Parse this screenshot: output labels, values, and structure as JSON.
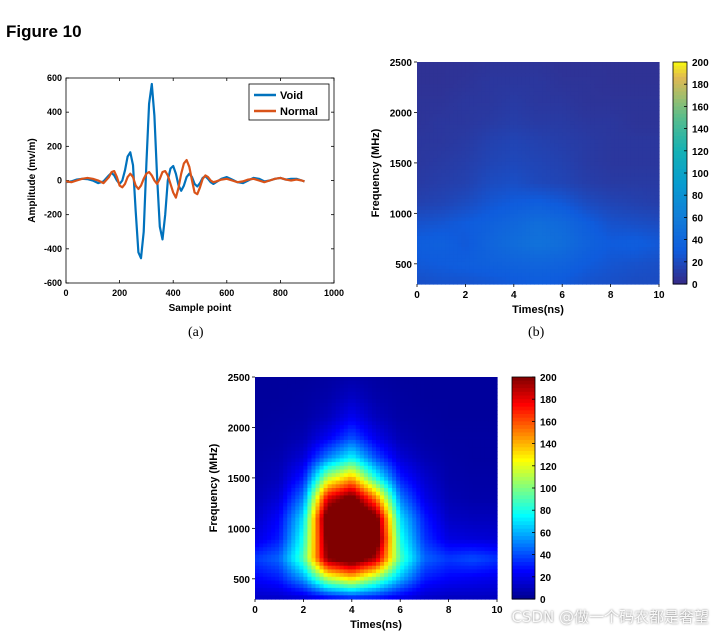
{
  "figure_title": "Figure 10",
  "panel_labels": [
    "(a)",
    "(b)"
  ],
  "watermark": "CSDN @做一个码农都是奢望",
  "chart_data": [
    {
      "id": "a",
      "type": "line",
      "xlabel": "Sample point",
      "ylabel": "Amplitude (mv/m)",
      "xlim": [
        0,
        1000
      ],
      "ylim": [
        -600,
        600
      ],
      "xticks": [
        0,
        200,
        400,
        600,
        800,
        1000
      ],
      "yticks": [
        -600,
        -400,
        -200,
        0,
        200,
        400,
        600
      ],
      "legend_position": "top-right",
      "grid": false,
      "series": [
        {
          "name": "Void",
          "color": "#0072BD",
          "x": [
            0,
            20,
            40,
            60,
            80,
            100,
            120,
            140,
            160,
            170,
            180,
            190,
            200,
            210,
            220,
            230,
            240,
            250,
            260,
            270,
            280,
            290,
            300,
            310,
            320,
            330,
            340,
            350,
            360,
            370,
            380,
            390,
            400,
            410,
            420,
            430,
            440,
            450,
            460,
            470,
            480,
            490,
            500,
            510,
            520,
            530,
            540,
            550,
            560,
            580,
            600,
            620,
            640,
            660,
            680,
            700,
            720,
            740,
            760,
            780,
            800,
            820,
            840,
            860,
            880,
            890
          ],
          "y": [
            -10,
            -5,
            5,
            10,
            8,
            0,
            -15,
            -5,
            30,
            45,
            30,
            0,
            -20,
            0,
            60,
            140,
            165,
            90,
            -180,
            -420,
            -455,
            -300,
            100,
            450,
            565,
            380,
            20,
            -270,
            -345,
            -200,
            0,
            70,
            85,
            40,
            -30,
            -60,
            -30,
            20,
            40,
            20,
            -20,
            -35,
            -15,
            15,
            25,
            10,
            -10,
            -20,
            -10,
            10,
            20,
            5,
            -10,
            -15,
            0,
            15,
            10,
            -5,
            0,
            10,
            15,
            5,
            10,
            10,
            0,
            -5
          ]
        },
        {
          "name": "Normal",
          "color": "#D95319",
          "x": [
            0,
            20,
            40,
            60,
            80,
            100,
            120,
            140,
            160,
            170,
            180,
            190,
            200,
            210,
            220,
            230,
            240,
            250,
            260,
            270,
            280,
            290,
            300,
            310,
            320,
            330,
            340,
            350,
            360,
            370,
            380,
            390,
            400,
            410,
            420,
            430,
            440,
            450,
            460,
            470,
            480,
            490,
            500,
            510,
            520,
            530,
            540,
            550,
            560,
            580,
            600,
            620,
            640,
            660,
            680,
            700,
            720,
            740,
            760,
            780,
            800,
            820,
            840,
            860,
            880,
            890
          ],
          "y": [
            -5,
            -10,
            0,
            10,
            15,
            10,
            0,
            -15,
            20,
            50,
            55,
            20,
            -30,
            -40,
            -20,
            20,
            40,
            20,
            -30,
            -50,
            -30,
            10,
            40,
            50,
            30,
            0,
            -20,
            10,
            50,
            55,
            30,
            -20,
            -70,
            -100,
            -40,
            40,
            100,
            120,
            80,
            0,
            -70,
            -80,
            -40,
            10,
            30,
            20,
            0,
            -10,
            -5,
            5,
            10,
            0,
            -10,
            -5,
            5,
            10,
            0,
            -10,
            0,
            10,
            15,
            5,
            0,
            5,
            0,
            -5
          ]
        }
      ]
    },
    {
      "id": "b",
      "type": "heatmap",
      "xlabel": "Times(ns)",
      "ylabel": "Frequency (MHz)",
      "xlim": [
        0,
        10
      ],
      "ylim": [
        300,
        2500
      ],
      "xticks": [
        0,
        2,
        4,
        6,
        8,
        10
      ],
      "yticks": [
        500,
        1000,
        1500,
        2000,
        2500
      ],
      "colormap": "parula",
      "color_range": [
        0,
        200
      ],
      "colorbar_ticks": [
        0,
        20,
        40,
        60,
        80,
        100,
        120,
        140,
        160,
        180,
        200
      ],
      "x": [
        0,
        1,
        2,
        3,
        4,
        5,
        6,
        7,
        8,
        9,
        10
      ],
      "y": [
        300,
        500,
        700,
        900,
        1100,
        1300,
        1500,
        1700,
        1900,
        2100,
        2300,
        2500
      ],
      "z": [
        [
          22,
          24,
          24,
          26,
          28,
          30,
          28,
          24,
          22,
          20,
          20
        ],
        [
          28,
          30,
          32,
          34,
          36,
          38,
          36,
          30,
          26,
          24,
          22
        ],
        [
          32,
          34,
          28,
          38,
          45,
          50,
          46,
          36,
          30,
          32,
          28
        ],
        [
          24,
          26,
          30,
          34,
          40,
          46,
          42,
          32,
          24,
          22,
          20
        ],
        [
          14,
          16,
          20,
          26,
          30,
          32,
          28,
          20,
          16,
          14,
          12
        ],
        [
          10,
          12,
          14,
          20,
          22,
          18,
          16,
          12,
          10,
          10,
          10
        ],
        [
          8,
          10,
          12,
          16,
          18,
          16,
          14,
          10,
          8,
          8,
          8
        ],
        [
          8,
          8,
          10,
          14,
          16,
          14,
          12,
          10,
          8,
          8,
          8
        ],
        [
          6,
          8,
          8,
          10,
          12,
          10,
          10,
          8,
          8,
          6,
          6
        ],
        [
          6,
          6,
          8,
          8,
          10,
          8,
          8,
          6,
          6,
          6,
          6
        ],
        [
          5,
          5,
          6,
          8,
          8,
          8,
          6,
          6,
          5,
          5,
          5
        ],
        [
          5,
          5,
          5,
          6,
          6,
          6,
          5,
          5,
          5,
          5,
          5
        ]
      ]
    },
    {
      "id": "c",
      "type": "heatmap",
      "xlabel": "Times(ns)",
      "ylabel": "Frequency (MHz)",
      "xlim": [
        0,
        10
      ],
      "ylim": [
        300,
        2500
      ],
      "xticks": [
        0,
        2,
        4,
        6,
        8,
        10
      ],
      "yticks": [
        500,
        1000,
        1500,
        2000,
        2500
      ],
      "colormap": "jet",
      "color_range": [
        0,
        200
      ],
      "colorbar_ticks": [
        0,
        20,
        40,
        60,
        80,
        100,
        120,
        140,
        160,
        180,
        200
      ],
      "x": [
        0,
        1,
        2,
        3,
        4,
        5,
        6,
        7,
        8,
        9,
        10
      ],
      "y": [
        300,
        500,
        700,
        900,
        1100,
        1300,
        1500,
        1700,
        1900,
        2100,
        2300,
        2500
      ],
      "z": [
        [
          12,
          12,
          14,
          20,
          26,
          24,
          18,
          12,
          10,
          10,
          10
        ],
        [
          24,
          30,
          55,
          110,
          130,
          100,
          60,
          30,
          24,
          22,
          20
        ],
        [
          36,
          45,
          90,
          200,
          220,
          190,
          90,
          45,
          36,
          40,
          35
        ],
        [
          18,
          30,
          80,
          210,
          240,
          220,
          80,
          35,
          18,
          16,
          15
        ],
        [
          12,
          25,
          70,
          220,
          240,
          210,
          70,
          30,
          12,
          10,
          10
        ],
        [
          8,
          16,
          50,
          180,
          210,
          150,
          50,
          20,
          8,
          6,
          6
        ],
        [
          6,
          10,
          30,
          110,
          140,
          80,
          30,
          14,
          6,
          5,
          5
        ],
        [
          5,
          7,
          16,
          50,
          75,
          40,
          16,
          8,
          5,
          4,
          4
        ],
        [
          4,
          5,
          8,
          22,
          40,
          20,
          8,
          5,
          4,
          4,
          4
        ],
        [
          3,
          4,
          5,
          10,
          22,
          10,
          5,
          4,
          3,
          3,
          3
        ],
        [
          3,
          3,
          4,
          6,
          12,
          6,
          4,
          3,
          3,
          3,
          3
        ],
        [
          3,
          3,
          3,
          4,
          6,
          4,
          3,
          3,
          3,
          3,
          3
        ]
      ]
    }
  ]
}
